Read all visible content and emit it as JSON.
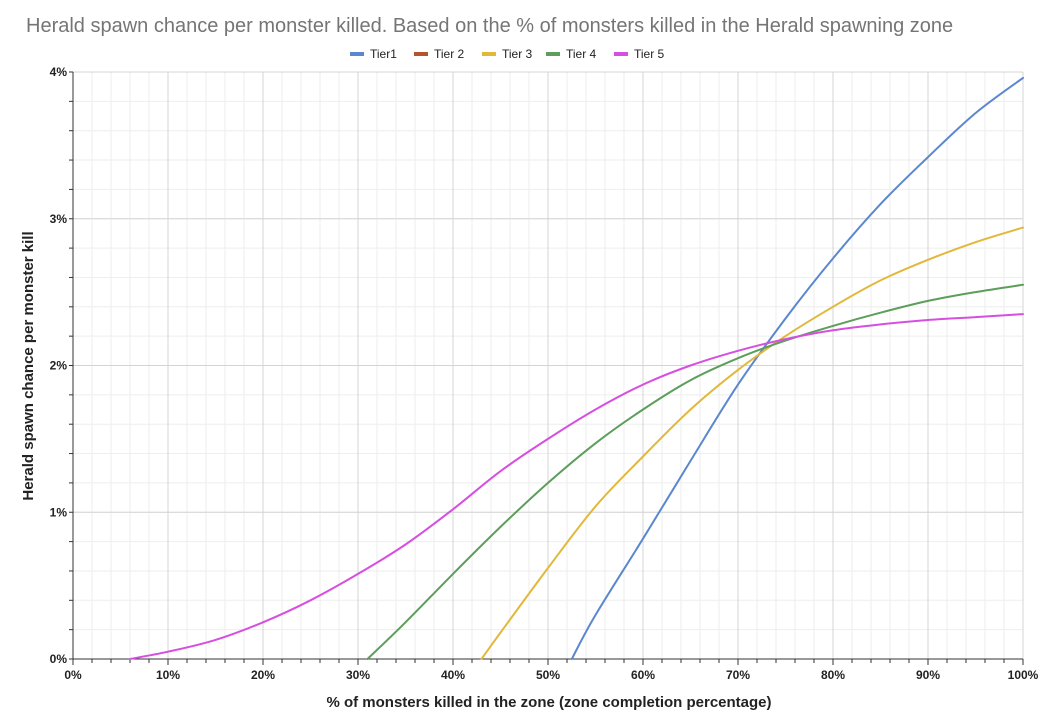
{
  "chart_data": {
    "type": "line",
    "title": "Herald spawn chance per monster killed. Based on the % of monsters killed in the Herald spawning zone",
    "xlabel": "% of monsters killed in the zone (zone completion percentage)",
    "ylabel": "Herald spawn chance per monster kill",
    "xlim": [
      0,
      100
    ],
    "ylim": [
      0,
      4
    ],
    "x_ticks": [
      "0%",
      "10%",
      "20%",
      "30%",
      "40%",
      "50%",
      "60%",
      "70%",
      "80%",
      "90%",
      "100%"
    ],
    "y_ticks": [
      "0%",
      "1%",
      "2%",
      "3%",
      "4%"
    ],
    "grid": true,
    "legend_position": "top",
    "series": [
      {
        "name": "Tier1",
        "color": "#5b87cf",
        "points": [
          [
            52.5,
            0
          ],
          [
            55,
            0.3
          ],
          [
            60,
            0.82
          ],
          [
            65,
            1.35
          ],
          [
            70,
            1.87
          ],
          [
            75,
            2.32
          ],
          [
            80,
            2.73
          ],
          [
            85,
            3.1
          ],
          [
            90,
            3.42
          ],
          [
            95,
            3.72
          ],
          [
            100,
            3.96
          ]
        ]
      },
      {
        "name": "Tier 2",
        "color": "#b5532e",
        "points": []
      },
      {
        "name": "Tier 3",
        "color": "#e2b83a",
        "points": [
          [
            43,
            0
          ],
          [
            45,
            0.18
          ],
          [
            50,
            0.62
          ],
          [
            55,
            1.04
          ],
          [
            60,
            1.38
          ],
          [
            65,
            1.7
          ],
          [
            70,
            1.97
          ],
          [
            75,
            2.2
          ],
          [
            80,
            2.4
          ],
          [
            85,
            2.58
          ],
          [
            90,
            2.72
          ],
          [
            95,
            2.84
          ],
          [
            100,
            2.94
          ]
        ]
      },
      {
        "name": "Tier 4",
        "color": "#5c9e5a",
        "points": [
          [
            31,
            0
          ],
          [
            35,
            0.25
          ],
          [
            40,
            0.58
          ],
          [
            45,
            0.9
          ],
          [
            50,
            1.2
          ],
          [
            55,
            1.47
          ],
          [
            60,
            1.7
          ],
          [
            65,
            1.9
          ],
          [
            70,
            2.05
          ],
          [
            75,
            2.17
          ],
          [
            80,
            2.27
          ],
          [
            85,
            2.36
          ],
          [
            90,
            2.44
          ],
          [
            95,
            2.5
          ],
          [
            100,
            2.55
          ]
        ]
      },
      {
        "name": "Tier 5",
        "color": "#d64fe0",
        "points": [
          [
            6,
            0
          ],
          [
            10,
            0.05
          ],
          [
            15,
            0.13
          ],
          [
            20,
            0.25
          ],
          [
            25,
            0.4
          ],
          [
            30,
            0.58
          ],
          [
            35,
            0.78
          ],
          [
            40,
            1.02
          ],
          [
            45,
            1.28
          ],
          [
            50,
            1.5
          ],
          [
            55,
            1.7
          ],
          [
            60,
            1.87
          ],
          [
            65,
            2.0
          ],
          [
            70,
            2.1
          ],
          [
            75,
            2.18
          ],
          [
            80,
            2.24
          ],
          [
            85,
            2.28
          ],
          [
            90,
            2.31
          ],
          [
            95,
            2.33
          ],
          [
            100,
            2.35
          ]
        ]
      }
    ]
  }
}
